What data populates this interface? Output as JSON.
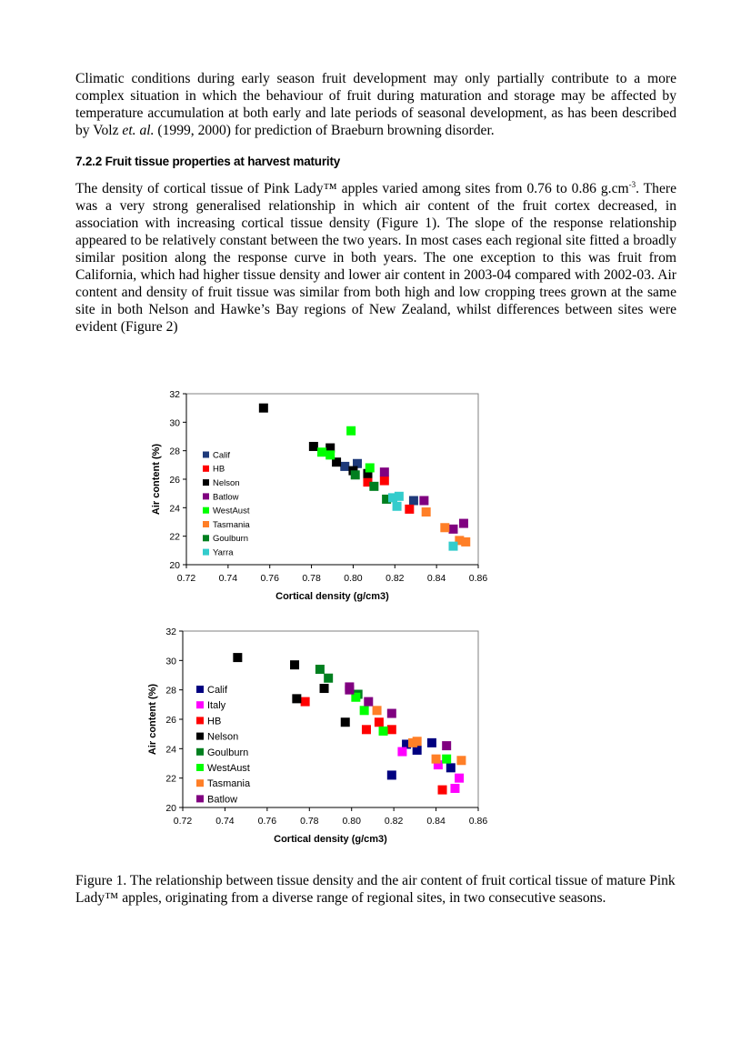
{
  "text": {
    "p1": "Climatic conditions during early season fruit development may only partially contribute to a more complex situation in which the behaviour of fruit during maturation and storage may be affected by temperature accumulation at both early and late periods of seasonal development, as has been described by Volz ",
    "p1_italic": "et. al.",
    "p1_end": " (1999, 2000) for prediction of Braeburn browning disorder.",
    "heading": "7.2.2 Fruit tissue properties at harvest maturity",
    "p2_a": "The density of cortical tissue of Pink Lady™ apples varied among sites from 0.76 to 0.86 g.cm",
    "p2_sup": "-3",
    "p2_b": ". There was a very strong generalised relationship in which air content of the fruit cortex decreased, in association with increasing cortical tissue density (Figure 1).  The slope of the response relationship appeared to be relatively constant between the two years.  In most cases each regional site fitted a broadly similar position along the response curve in both years.  The one exception to this was fruit from California, which had higher tissue density and lower air content in 2003-04 compared with 2002-03.  Air content and density of fruit tissue was similar from both high and low cropping trees grown at the same site in both Nelson and Hawke’s Bay regions of New Zealand, whilst differences between sites were evident (Figure 2)",
    "caption": "Figure 1.  The relationship between tissue density and the air content of fruit cortical tissue of mature Pink Lady™ apples, originating from a diverse range of regional sites, in two consecutive seasons."
  },
  "chart_data": [
    {
      "type": "scatter",
      "xlabel": "Cortical density (g/cm3)",
      "ylabel": "Air content (%)",
      "xlim": [
        0.72,
        0.86
      ],
      "ylim": [
        20,
        32
      ],
      "xticks": [
        "0.72",
        "0.74",
        "0.76",
        "0.78",
        "0.80",
        "0.82",
        "0.84",
        "0.86"
      ],
      "yticks": [
        "20",
        "22",
        "24",
        "26",
        "28",
        "30",
        "32"
      ],
      "grid": false,
      "legend_position": "left",
      "series": [
        {
          "name": "Calif",
          "color": "#1f3a7a",
          "points": [
            [
              0.796,
              26.9
            ],
            [
              0.802,
              27.1
            ],
            [
              0.807,
              26.2
            ],
            [
              0.829,
              24.5
            ]
          ]
        },
        {
          "name": "HB",
          "color": "#ff0000",
          "points": [
            [
              0.807,
              25.8
            ],
            [
              0.815,
              25.9
            ],
            [
              0.827,
              23.9
            ]
          ]
        },
        {
          "name": "Nelson",
          "color": "#000000",
          "points": [
            [
              0.757,
              31.0
            ],
            [
              0.781,
              28.3
            ],
            [
              0.789,
              28.2
            ],
            [
              0.792,
              27.2
            ],
            [
              0.8,
              26.6
            ],
            [
              0.807,
              26.4
            ]
          ]
        },
        {
          "name": "Batlow",
          "color": "#800080",
          "points": [
            [
              0.815,
              26.5
            ],
            [
              0.834,
              24.5
            ],
            [
              0.848,
              22.5
            ],
            [
              0.853,
              22.9
            ]
          ]
        },
        {
          "name": "WestAust",
          "color": "#00ff00",
          "points": [
            [
              0.799,
              29.4
            ],
            [
              0.785,
              27.9
            ],
            [
              0.789,
              27.7
            ],
            [
              0.808,
              26.8
            ]
          ]
        },
        {
          "name": "Tasmania",
          "color": "#ff7f27",
          "points": [
            [
              0.835,
              23.7
            ],
            [
              0.844,
              22.6
            ],
            [
              0.851,
              21.7
            ],
            [
              0.854,
              21.6
            ]
          ]
        },
        {
          "name": "Goulburn",
          "color": "#007f1f",
          "points": [
            [
              0.801,
              26.3
            ],
            [
              0.81,
              25.5
            ],
            [
              0.816,
              24.6
            ]
          ]
        },
        {
          "name": "Yarra",
          "color": "#33cccc",
          "points": [
            [
              0.819,
              24.7
            ],
            [
              0.822,
              24.8
            ],
            [
              0.821,
              24.1
            ],
            [
              0.848,
              21.3
            ]
          ]
        }
      ]
    },
    {
      "type": "scatter",
      "xlabel": "Cortical density (g/cm3)",
      "ylabel": "Air content (%)",
      "xlim": [
        0.72,
        0.86
      ],
      "ylim": [
        20,
        32
      ],
      "xticks": [
        "0.72",
        "0.74",
        "0.76",
        "0.78",
        "0.80",
        "0.82",
        "0.84",
        "0.86"
      ],
      "yticks": [
        "20",
        "22",
        "24",
        "26",
        "28",
        "30",
        "32"
      ],
      "grid": false,
      "legend_position": "left",
      "series": [
        {
          "name": "Calif",
          "color": "#000080",
          "points": [
            [
              0.819,
              22.2
            ],
            [
              0.826,
              24.3
            ],
            [
              0.831,
              23.9
            ],
            [
              0.838,
              24.4
            ],
            [
              0.847,
              22.7
            ]
          ]
        },
        {
          "name": "Italy",
          "color": "#ff00ff",
          "points": [
            [
              0.824,
              23.8
            ],
            [
              0.841,
              22.9
            ],
            [
              0.849,
              21.3
            ],
            [
              0.851,
              22.0
            ]
          ]
        },
        {
          "name": "HB",
          "color": "#ff0000",
          "points": [
            [
              0.778,
              27.2
            ],
            [
              0.807,
              25.3
            ],
            [
              0.813,
              25.8
            ],
            [
              0.819,
              25.3
            ],
            [
              0.843,
              21.2
            ]
          ]
        },
        {
          "name": "Nelson",
          "color": "#000000",
          "points": [
            [
              0.746,
              30.2
            ],
            [
              0.773,
              29.7
            ],
            [
              0.774,
              27.4
            ],
            [
              0.787,
              28.1
            ],
            [
              0.797,
              25.8
            ]
          ]
        },
        {
          "name": "Goulburn",
          "color": "#007f1f",
          "points": [
            [
              0.785,
              29.4
            ],
            [
              0.789,
              28.8
            ],
            [
              0.803,
              27.7
            ]
          ]
        },
        {
          "name": "WestAust",
          "color": "#00ff00",
          "points": [
            [
              0.802,
              27.5
            ],
            [
              0.806,
              26.6
            ],
            [
              0.815,
              25.2
            ],
            [
              0.845,
              23.3
            ]
          ]
        },
        {
          "name": "Tasmania",
          "color": "#ff7f27",
          "points": [
            [
              0.812,
              26.6
            ],
            [
              0.829,
              24.4
            ],
            [
              0.831,
              24.5
            ],
            [
              0.84,
              23.3
            ],
            [
              0.852,
              23.2
            ]
          ]
        },
        {
          "name": "Batlow",
          "color": "#800080",
          "points": [
            [
              0.799,
              28.2
            ],
            [
              0.799,
              28.0
            ],
            [
              0.808,
              27.2
            ],
            [
              0.819,
              26.4
            ],
            [
              0.845,
              24.2
            ]
          ]
        }
      ]
    }
  ]
}
